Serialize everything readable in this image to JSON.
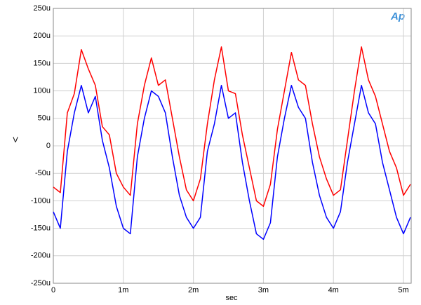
{
  "chart_data": {
    "type": "line",
    "logo": "Ap",
    "x_label": "sec",
    "y_label": "V",
    "x": [
      0,
      0.0001,
      0.0002,
      0.0003,
      0.0004,
      0.0005,
      0.0006,
      0.0007,
      0.0008,
      0.0009,
      0.001,
      0.0011,
      0.0012,
      0.0013,
      0.0014,
      0.0015,
      0.0016,
      0.0017,
      0.0018,
      0.0019,
      0.002,
      0.0021,
      0.0022,
      0.0023,
      0.0024,
      0.0025,
      0.0026,
      0.0027,
      0.0028,
      0.0029,
      0.003,
      0.0031,
      0.0032,
      0.0033,
      0.0034,
      0.0035,
      0.0036,
      0.0037,
      0.0038,
      0.0039,
      0.004,
      0.0041,
      0.0042,
      0.0043,
      0.0044,
      0.0045,
      0.0046,
      0.0047,
      0.0048,
      0.0049,
      0.005,
      0.0051
    ],
    "series": [
      {
        "color": "#ff0000",
        "values": [
          -7.5e-05,
          -8.5e-05,
          6e-05,
          9.5e-05,
          0.000175,
          0.00014,
          0.00011,
          3.5e-05,
          2e-05,
          -5e-05,
          -7.5e-05,
          -9e-05,
          4e-05,
          0.00011,
          0.00016,
          0.00011,
          0.00012,
          5e-05,
          -2e-05,
          -8e-05,
          -0.0001,
          -6e-05,
          4e-05,
          0.00012,
          0.00018,
          0.0001,
          9.5e-05,
          2e-05,
          -4e-05,
          -0.0001,
          -0.00011,
          -7e-05,
          3e-05,
          0.0001,
          0.00017,
          0.00012,
          0.00011,
          4e-05,
          -2e-05,
          -6e-05,
          -9e-05,
          -8e-05,
          1e-05,
          0.0001,
          0.00018,
          0.00012,
          9e-05,
          4e-05,
          -1e-05,
          -4e-05,
          -9e-05,
          -7e-05
        ]
      },
      {
        "color": "#0000ff",
        "values": [
          -0.00012,
          -0.00015,
          -1e-05,
          6e-05,
          0.00011,
          6e-05,
          9e-05,
          1e-05,
          -4e-05,
          -0.00011,
          -0.00015,
          -0.00016,
          -2e-05,
          5e-05,
          0.0001,
          9e-05,
          6e-05,
          -2e-05,
          -9e-05,
          -0.00013,
          -0.00015,
          -0.00013,
          -1e-05,
          4e-05,
          0.00011,
          5e-05,
          6e-05,
          -3e-05,
          -0.0001,
          -0.00016,
          -0.00017,
          -0.00014,
          -2e-05,
          5e-05,
          0.00011,
          7e-05,
          5e-05,
          -3e-05,
          -9e-05,
          -0.00013,
          -0.00015,
          -0.00012,
          -3e-05,
          4e-05,
          0.00011,
          6e-05,
          4e-05,
          -3e-05,
          -8e-05,
          -0.00013,
          -0.00016,
          -0.00013
        ]
      }
    ],
    "xlim": [
      0,
      0.00511
    ],
    "xticks": [
      0,
      {
        "value": 0.001,
        "label": "1m"
      },
      {
        "value": 0.002,
        "label": "2m"
      },
      {
        "value": 0.003,
        "label": "3m"
      },
      {
        "value": 0.004,
        "label": "4m"
      },
      {
        "value": 0.005,
        "label": "5m"
      }
    ],
    "ylim": [
      -0.00025,
      0.00025
    ],
    "yticks": [
      {
        "value": -0.00025,
        "label": "-250u"
      },
      {
        "value": -0.0002,
        "label": "-200u"
      },
      {
        "value": -0.00015,
        "label": "-150u"
      },
      {
        "value": -0.0001,
        "label": "-100u"
      },
      {
        "value": -5e-05,
        "label": "-50u"
      },
      0,
      {
        "value": 5e-05,
        "label": "50u"
      },
      {
        "value": 0.0001,
        "label": "100u"
      },
      {
        "value": 0.00015,
        "label": "150u"
      },
      {
        "value": 0.0002,
        "label": "200u"
      },
      {
        "value": 0.00025,
        "label": "250u"
      }
    ],
    "grid": true
  }
}
